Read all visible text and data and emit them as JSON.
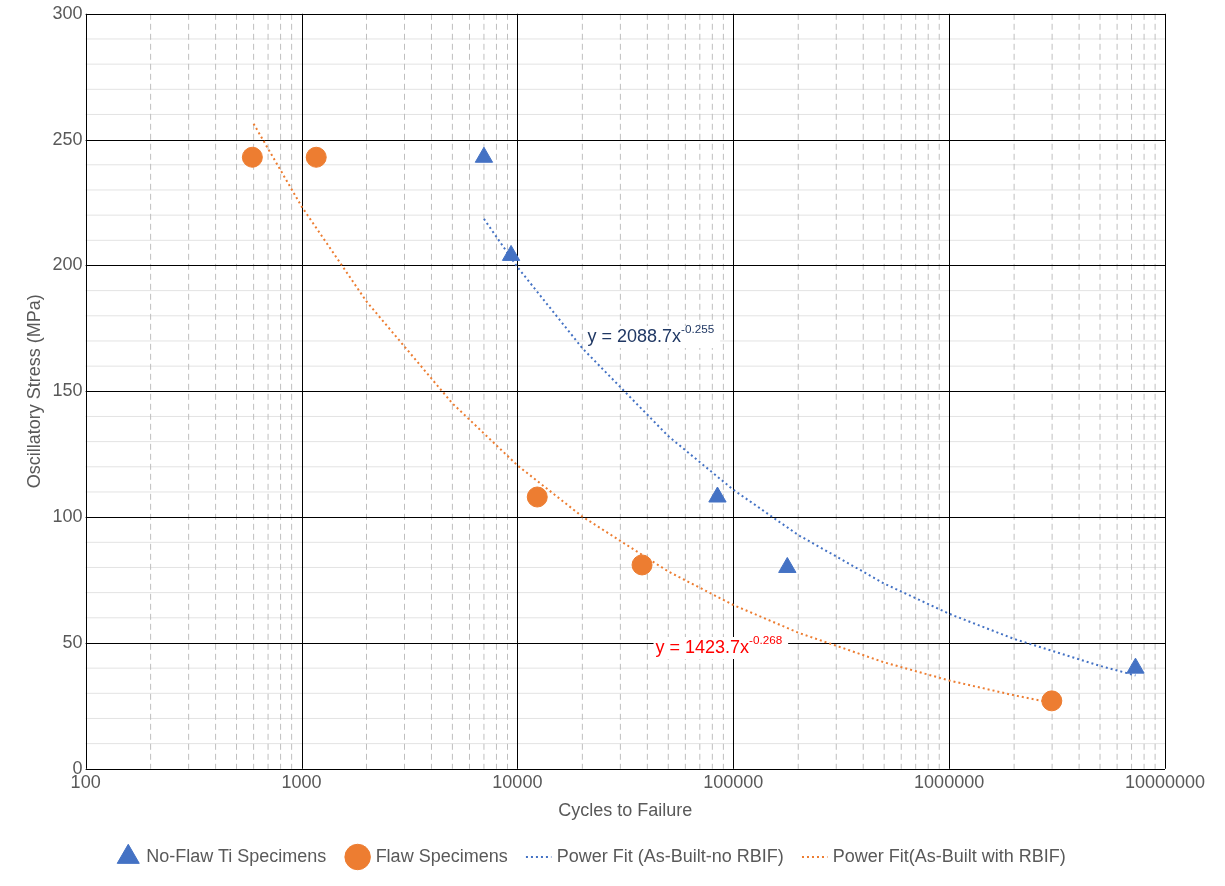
{
  "chart_data": {
    "type": "scatter",
    "xlabel": "Cycles to Failure",
    "ylabel": "Oscillatory Stress (MPa)",
    "log": "x",
    "xlim": [
      100,
      10000000
    ],
    "xticks": [
      100,
      {
        "value": 200,
        "label": null
      },
      {
        "value": 300,
        "label": null
      },
      {
        "value": 400,
        "label": null
      },
      {
        "value": 500,
        "label": null
      },
      {
        "value": 600,
        "label": null
      },
      {
        "value": 700,
        "label": null
      },
      {
        "value": 800,
        "label": null
      },
      {
        "value": 900,
        "label": null
      },
      1000,
      {
        "value": 2000,
        "label": null
      },
      {
        "value": 3000,
        "label": null
      },
      {
        "value": 4000,
        "label": null
      },
      {
        "value": 5000,
        "label": null
      },
      {
        "value": 6000,
        "label": null
      },
      {
        "value": 7000,
        "label": null
      },
      {
        "value": 8000,
        "label": null
      },
      {
        "value": 9000,
        "label": null
      },
      10000,
      {
        "value": 20000,
        "label": null
      },
      {
        "value": 30000,
        "label": null
      },
      {
        "value": 40000,
        "label": null
      },
      {
        "value": 50000,
        "label": null
      },
      {
        "value": 60000,
        "label": null
      },
      {
        "value": 70000,
        "label": null
      },
      {
        "value": 80000,
        "label": null
      },
      {
        "value": 90000,
        "label": null
      },
      100000,
      {
        "value": 200000,
        "label": null
      },
      {
        "value": 300000,
        "label": null
      },
      {
        "value": 400000,
        "label": null
      },
      {
        "value": 500000,
        "label": null
      },
      {
        "value": 600000,
        "label": null
      },
      {
        "value": 700000,
        "label": null
      },
      {
        "value": 800000,
        "label": null
      },
      {
        "value": 900000,
        "label": null
      },
      1000000,
      {
        "value": 2000000,
        "label": null
      },
      {
        "value": 3000000,
        "label": null
      },
      {
        "value": 4000000,
        "label": null
      },
      {
        "value": 5000000,
        "label": null
      },
      {
        "value": 6000000,
        "label": null
      },
      {
        "value": 7000000,
        "label": null
      },
      {
        "value": 8000000,
        "label": null
      },
      {
        "value": 9000000,
        "label": null
      },
      10000000
    ],
    "ylim": [
      0,
      300
    ],
    "yticks": [
      0,
      {
        "value": 10,
        "label": null
      },
      {
        "value": 20,
        "label": null
      },
      {
        "value": 30,
        "label": null
      },
      {
        "value": 40,
        "label": null
      },
      50,
      {
        "value": 60,
        "label": null
      },
      {
        "value": 70,
        "label": null
      },
      {
        "value": 80,
        "label": null
      },
      {
        "value": 90,
        "label": null
      },
      100,
      {
        "value": 110,
        "label": null
      },
      {
        "value": 120,
        "label": null
      },
      {
        "value": 130,
        "label": null
      },
      {
        "value": 140,
        "label": null
      },
      150,
      {
        "value": 160,
        "label": null
      },
      {
        "value": 170,
        "label": null
      },
      {
        "value": 180,
        "label": null
      },
      {
        "value": 190,
        "label": null
      },
      200,
      {
        "value": 210,
        "label": null
      },
      {
        "value": 220,
        "label": null
      },
      {
        "value": 230,
        "label": null
      },
      {
        "value": 240,
        "label": null
      },
      250,
      {
        "value": 260,
        "label": null
      },
      {
        "value": 270,
        "label": null
      },
      {
        "value": 280,
        "label": null
      },
      {
        "value": 290,
        "label": null
      },
      300
    ],
    "grid": true,
    "legend": "bottom",
    "series": [
      {
        "name": "No-Flaw Ti Specimens",
        "marker": "triangle",
        "color": "#4472c4",
        "x": [
          7000,
          9350,
          84500,
          178000,
          7300000
        ],
        "values": [
          243,
          204,
          108,
          80,
          40
        ]
      },
      {
        "name": "Flaw Specimens",
        "marker": "circle",
        "color": "#ed7d31",
        "x": [
          592,
          1170,
          12360,
          37800,
          2990000
        ],
        "values": [
          243,
          243,
          108,
          81,
          27
        ]
      },
      {
        "name": "Power Fit (As-Built-no RBIF)",
        "type": "line",
        "marker": "none",
        "line_style": "dotted",
        "color": "#4472c4",
        "x": [
          7000,
          10000,
          20000,
          50000,
          100000,
          200000,
          500000,
          1000000,
          2000000,
          5000000,
          7300000
        ],
        "values": [
          218.5,
          199.4,
          167.1,
          132.2,
          110.9,
          92.9,
          73.6,
          61.6,
          51.6,
          40.9,
          37.1
        ]
      },
      {
        "name": "Power Fit(As-Built with RBIF)",
        "type": "line",
        "marker": "none",
        "line_style": "dotted",
        "color": "#ed7d31",
        "x": [
          600,
          1000,
          2000,
          5000,
          10000,
          20000,
          50000,
          100000,
          200000,
          500000,
          1000000,
          2000000,
          3000000
        ],
        "values": [
          256.3,
          223.5,
          185.7,
          145.2,
          120.6,
          100.2,
          78.4,
          65.1,
          54.1,
          42.3,
          35.1,
          29.2,
          26.2
        ]
      }
    ],
    "annotations": [
      "y = 2088.7x$^{-0.255}$",
      "y = 1423.7x$^{-0.268}$"
    ]
  }
}
